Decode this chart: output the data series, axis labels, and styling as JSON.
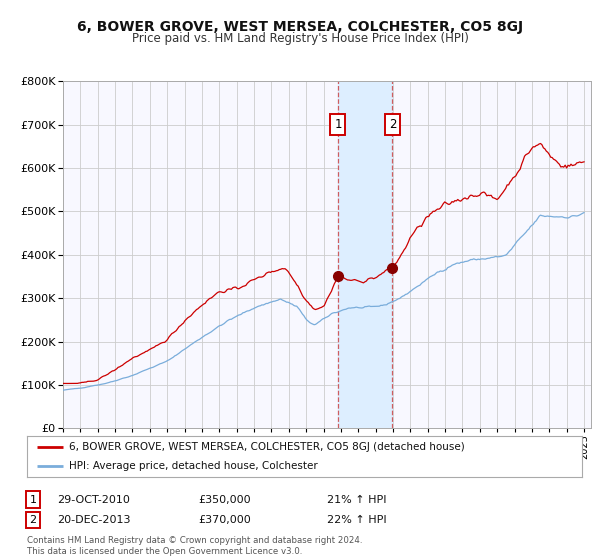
{
  "title": "6, BOWER GROVE, WEST MERSEA, COLCHESTER, CO5 8GJ",
  "subtitle": "Price paid vs. HM Land Registry's House Price Index (HPI)",
  "legend_line1": "6, BOWER GROVE, WEST MERSEA, COLCHESTER, CO5 8GJ (detached house)",
  "legend_line2": "HPI: Average price, detached house, Colchester",
  "annotation1_label": "1",
  "annotation1_date": "29-OCT-2010",
  "annotation1_price": "£350,000",
  "annotation1_hpi": "21% ↑ HPI",
  "annotation2_label": "2",
  "annotation2_date": "20-DEC-2013",
  "annotation2_price": "£370,000",
  "annotation2_hpi": "22% ↑ HPI",
  "footer": "Contains HM Land Registry data © Crown copyright and database right 2024.\nThis data is licensed under the Open Government Licence v3.0.",
  "red_color": "#cc0000",
  "blue_color": "#7aaddb",
  "bg_color": "#ffffff",
  "grid_color": "#cccccc",
  "plot_bg_color": "#f8f8ff",
  "shade_color": "#ddeeff",
  "vline_color": "#cc4444",
  "marker_color": "#880000",
  "sale1_year": 2010.83,
  "sale1_value": 350000,
  "sale2_year": 2013.97,
  "sale2_value": 370000,
  "ylim_min": 0,
  "ylim_max": 800000,
  "xmin": 1995,
  "xmax": 2025.4,
  "hpi_checkpoints_years": [
    1995.0,
    1996.0,
    1997.5,
    1999.0,
    2001.0,
    2003.0,
    2004.5,
    2006.0,
    2007.5,
    2008.5,
    2009.0,
    2009.5,
    2010.5,
    2011.5,
    2012.5,
    2013.5,
    2014.5,
    2015.5,
    2016.5,
    2017.5,
    2018.5,
    2019.5,
    2020.5,
    2021.5,
    2022.5,
    2023.5,
    2024.5,
    2025.0
  ],
  "hpi_checkpoints_vals": [
    88000,
    93000,
    104000,
    122000,
    155000,
    210000,
    248000,
    278000,
    298000,
    280000,
    250000,
    238000,
    265000,
    278000,
    278000,
    284000,
    302000,
    330000,
    358000,
    378000,
    388000,
    392000,
    398000,
    445000,
    490000,
    488000,
    488000,
    498000
  ],
  "prop_checkpoints_years": [
    1995.0,
    1996.0,
    1997.0,
    1998.0,
    1999.0,
    2000.0,
    2001.0,
    2002.0,
    2003.0,
    2004.0,
    2005.0,
    2006.0,
    2007.0,
    2007.8,
    2008.5,
    2009.0,
    2009.5,
    2010.0,
    2010.83,
    2011.5,
    2012.0,
    2012.5,
    2013.0,
    2013.97,
    2014.5,
    2015.0,
    2016.0,
    2017.0,
    2018.0,
    2019.0,
    2020.0,
    2021.0,
    2022.0,
    2022.5,
    2023.0,
    2023.5,
    2024.0,
    2024.5,
    2025.0
  ],
  "prop_checkpoints_vals": [
    103000,
    104000,
    112000,
    135000,
    162000,
    180000,
    205000,
    248000,
    285000,
    315000,
    322000,
    342000,
    362000,
    370000,
    330000,
    295000,
    275000,
    280000,
    350000,
    342000,
    338000,
    342000,
    348000,
    370000,
    400000,
    440000,
    488000,
    515000,
    530000,
    542000,
    528000,
    582000,
    648000,
    655000,
    630000,
    612000,
    603000,
    608000,
    615000
  ]
}
